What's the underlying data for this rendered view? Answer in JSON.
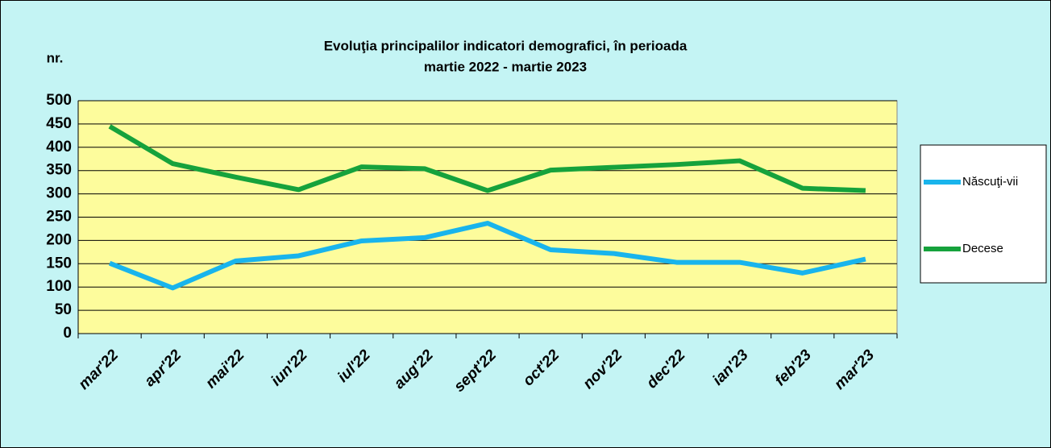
{
  "chart_data": {
    "type": "line",
    "title": [
      "Evoluţia principalilor  indicatori demografici, în perioada",
      "martie 2022 - martie 2023"
    ],
    "y_label": "nr.",
    "categories": [
      "mar'22",
      "apr'22",
      "mai'22",
      "iun'22",
      "iul'22",
      "aug'22",
      "sept'22",
      "oct'22",
      "nov'22",
      "dec'22",
      "ian'23",
      "feb'23",
      "mar'23"
    ],
    "series": [
      {
        "name": "Născuţi-vii",
        "color": "#19b4ec",
        "values": [
          151,
          98,
          156,
          167,
          199,
          206,
          237,
          180,
          172,
          153,
          153,
          130,
          160
        ]
      },
      {
        "name": "Decese",
        "color": "#16a23c",
        "values": [
          445,
          365,
          336,
          309,
          358,
          354,
          307,
          351,
          357,
          363,
          371,
          312,
          307
        ]
      }
    ],
    "ylim": [
      0,
      500
    ],
    "yticks": [
      0,
      50,
      100,
      150,
      200,
      250,
      300,
      350,
      400,
      450,
      500
    ],
    "grid": true,
    "legend": "right"
  }
}
